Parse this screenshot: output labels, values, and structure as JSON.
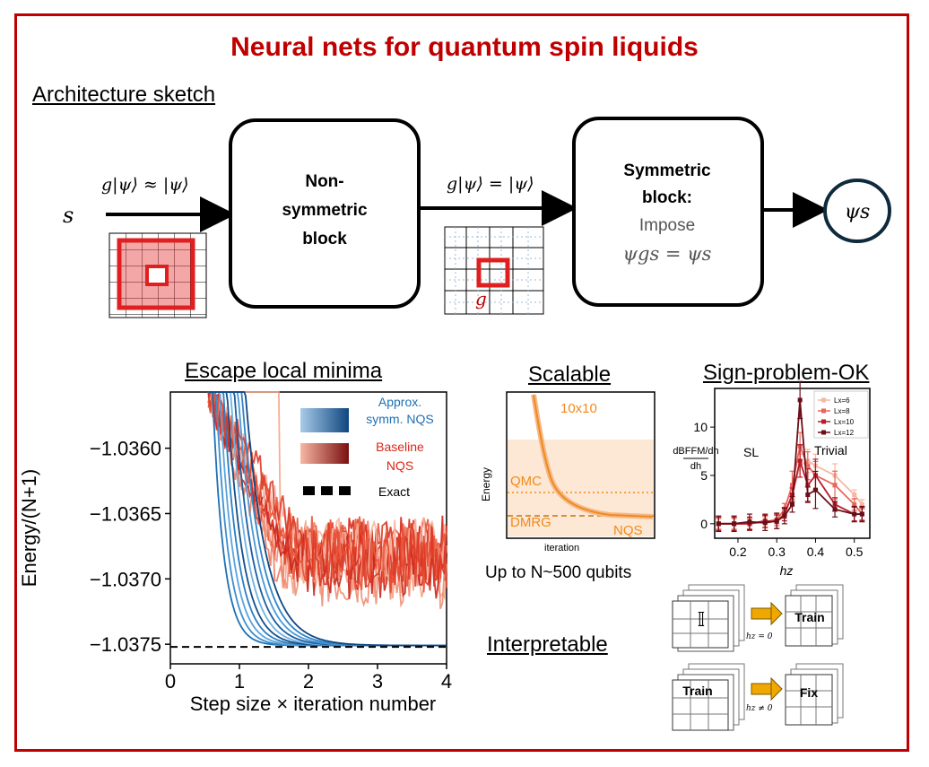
{
  "title": "Neural nets for quantum spin liquids",
  "sections": {
    "architecture": "Architecture sketch",
    "escape": "Escape local minima",
    "scalable": "Scalable",
    "sign": "Sign-problem-OK",
    "interpretable": "Interpretable"
  },
  "architecture": {
    "input": "s",
    "arrow1_label": "g|ψ⟩ ≈ |ψ⟩",
    "arrow2_label": "g|ψ⟩ = |ψ⟩",
    "block1": [
      "Non-",
      "symmetric",
      "block"
    ],
    "block2_title": [
      "Symmetric",
      "block:"
    ],
    "block2_impose": "Impose",
    "block2_eq": "ψgs = ψs",
    "output": "ψs",
    "grid_g": "g"
  },
  "colors": {
    "accent": "#c00000",
    "blue": "#1f6fb5",
    "red": "#e8412c",
    "orange": "#f08a1c"
  },
  "chart_data": [
    {
      "type": "line",
      "title": "Escape local minima",
      "xlabel": "Step size × iteration number",
      "ylabel": "Energy/(N+1)",
      "xlim": [
        0,
        4
      ],
      "ylim": [
        -1.03765,
        -1.03557
      ],
      "xticks": [
        "0",
        "1",
        "2",
        "3",
        "4"
      ],
      "yticks": [
        -1.036,
        -1.0365,
        -1.037,
        -1.0375
      ],
      "ytick_labels": [
        "−1.0360",
        "−1.0365",
        "−1.0370",
        "−1.0375"
      ],
      "legend": [
        "Approx. symm. NQS",
        "Baseline NQS",
        "Exact"
      ],
      "exact": -1.03752,
      "series": [
        {
          "name": "Approx. symm. NQS",
          "converged": -1.03751
        },
        {
          "name": "Baseline NQS",
          "plateau": -1.0369
        }
      ]
    },
    {
      "type": "line",
      "title": "Scalable",
      "xlabel": "iteration",
      "ylabel": "Energy",
      "annotations": [
        "10x10",
        "QMC",
        "DMRG",
        "NQS"
      ],
      "caption": "Up to N~500 qubits"
    },
    {
      "type": "line",
      "title": "Sign-problem-OK",
      "xlabel": "hz",
      "ylabel": "dBFFM/dh",
      "xticks": [
        "0.2",
        "0.3",
        "0.4",
        "0.5"
      ],
      "yticks": [
        "0",
        "5",
        "10"
      ],
      "regions": [
        "SL",
        "Trivial"
      ],
      "x": [
        0.15,
        0.19,
        0.23,
        0.27,
        0.3,
        0.32,
        0.34,
        0.36,
        0.38,
        0.4,
        0.45,
        0.5,
        0.52
      ],
      "series": [
        {
          "name": "Lx=6",
          "values": [
            0,
            0,
            0,
            0.2,
            0.5,
            1,
            3,
            6,
            6.5,
            6,
            5,
            3,
            2
          ]
        },
        {
          "name": "Lx=8",
          "values": [
            0,
            0,
            0,
            0.2,
            0.4,
            1.5,
            4,
            8,
            6,
            5,
            4,
            2,
            1
          ]
        },
        {
          "name": "Lx=10",
          "values": [
            0,
            0,
            0,
            0.3,
            0.2,
            1,
            3,
            6.5,
            4,
            5,
            2,
            1,
            1
          ]
        },
        {
          "name": "Lx=12",
          "values": [
            0,
            0,
            0.2,
            0.1,
            0.3,
            0.8,
            2,
            12.8,
            3,
            3.5,
            1.5,
            1,
            1
          ]
        }
      ]
    }
  ],
  "interp": {
    "identity": "𝕀",
    "h0": "hz = 0",
    "hnz": "hz ≠ 0",
    "train": "Train",
    "fix": "Fix"
  }
}
